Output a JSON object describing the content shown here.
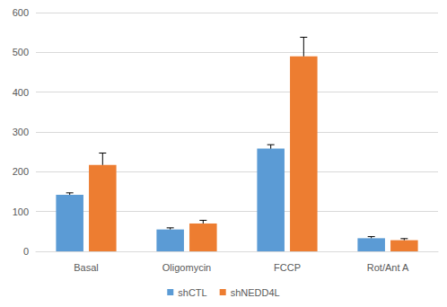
{
  "chart_data": {
    "type": "bar",
    "categories": [
      "Basal",
      "Oligomycin",
      "FCCP",
      "Rot/Ant A"
    ],
    "series": [
      {
        "name": "shCTL",
        "color": "#5b9bd5",
        "values": [
          142,
          55,
          258,
          33
        ],
        "error": [
          5,
          4,
          10,
          4
        ]
      },
      {
        "name": "shNEDD4L",
        "color": "#ed7d31",
        "values": [
          217,
          70,
          490,
          28
        ],
        "error": [
          30,
          8,
          48,
          4
        ]
      }
    ],
    "ylim": [
      0,
      600
    ],
    "yticks": [
      0,
      100,
      200,
      300,
      400,
      500,
      600
    ],
    "grid": true,
    "legend": "bottom"
  }
}
